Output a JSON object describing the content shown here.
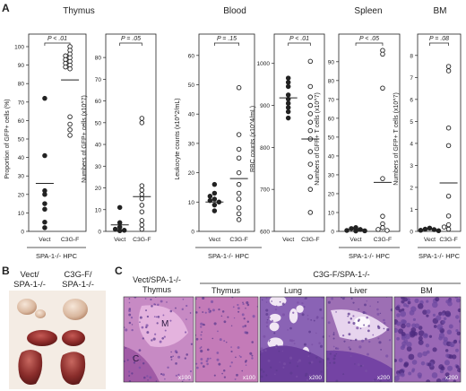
{
  "panels": {
    "a": "A",
    "b": "B",
    "c": "C"
  },
  "section_titles": {
    "thymus": "Thymus",
    "blood": "Blood",
    "spleen": "Spleen",
    "bm": "BM"
  },
  "group_labels": {
    "x_left": "Vect",
    "x_right": "C3G-F",
    "bracket": "SPA-1-/- HPC"
  },
  "chart_data": [
    {
      "type": "scatter",
      "key": "thymus_prop",
      "ylabel": "Proportion of GFP+ cells (%)",
      "ylim": [
        0,
        100
      ],
      "yticks": [
        "0",
        "10",
        "20",
        "30",
        "40",
        "50",
        "60",
        "70",
        "80",
        "90",
        "100"
      ],
      "yvals": [
        0,
        10,
        20,
        30,
        40,
        50,
        60,
        70,
        80,
        90,
        100
      ],
      "pvalue": "P < .01",
      "vect": {
        "values": [
          72,
          41,
          22,
          20,
          15,
          12,
          5,
          2
        ],
        "mean": 26
      },
      "c3gf": {
        "values": [
          100,
          98,
          96,
          95,
          94,
          93,
          92,
          91,
          90,
          89,
          88,
          62,
          58,
          55,
          52
        ],
        "mean": 82
      }
    },
    {
      "type": "scatter",
      "key": "thymus_num",
      "ylabel": "Numbers of GFP+ cells (x10^7)",
      "ylim": [
        0,
        85
      ],
      "yticks": [
        "0",
        "10",
        "20",
        "30",
        "40",
        "50",
        "60",
        "70",
        "80"
      ],
      "yvals": [
        0,
        10,
        20,
        30,
        40,
        50,
        60,
        70,
        80
      ],
      "pvalue": "P = .05",
      "vect": {
        "values": [
          11,
          4,
          2,
          1,
          0.5,
          0.3
        ],
        "mean": 3
      },
      "c3gf": {
        "values": [
          52,
          50,
          21,
          19,
          17,
          15,
          12,
          9,
          5,
          3,
          1
        ],
        "mean": 16
      }
    },
    {
      "type": "scatter",
      "key": "blood_leuk",
      "ylabel": "Leukocyte counts (x10^2/mL)",
      "ylim": [
        0,
        63
      ],
      "yticks": [
        "0",
        "10",
        "20",
        "30",
        "40",
        "50",
        "60"
      ],
      "yvals": [
        0,
        10,
        20,
        30,
        40,
        50,
        60
      ],
      "pvalue": "P = .15",
      "vect": {
        "values": [
          16,
          13,
          12,
          11,
          10.5,
          10,
          9,
          7
        ],
        "mean": 10
      },
      "c3gf": {
        "values": [
          49,
          33,
          28,
          25,
          20,
          16,
          13,
          11,
          8,
          6,
          4
        ],
        "mean": 18
      }
    },
    {
      "type": "scatter",
      "key": "blood_rbc",
      "ylabel": "RBC counts (x10^4/mL)",
      "ylim": [
        600,
        1040
      ],
      "yticks": [
        "600",
        "700",
        "800",
        "900",
        "1000"
      ],
      "yvals": [
        600,
        700,
        800,
        900,
        1000
      ],
      "pvalue": "P < .01",
      "vect": {
        "values": [
          965,
          955,
          945,
          925,
          915,
          905,
          895,
          885,
          870
        ],
        "mean": 918
      },
      "c3gf": {
        "values": [
          1005,
          945,
          920,
          900,
          880,
          860,
          840,
          820,
          790,
          760,
          730,
          700,
          645
        ],
        "mean": 820
      }
    },
    {
      "type": "scatter",
      "key": "spleen_num",
      "ylabel": "Numbers of GFP+ T cells (x10^7)",
      "ylim": [
        0,
        98
      ],
      "yticks": [
        "0",
        "10",
        "20",
        "30",
        "40",
        "50",
        "60",
        "70",
        "80",
        "90"
      ],
      "yvals": [
        0,
        10,
        20,
        30,
        40,
        50,
        60,
        70,
        80,
        90
      ],
      "pvalue": "P < .05",
      "vect": {
        "values": [
          2,
          1.5,
          1,
          0.5,
          0.3,
          0.2
        ],
        "mean": 1
      },
      "c3gf": {
        "values": [
          96,
          94,
          76,
          28,
          8,
          4,
          2,
          1,
          0.5
        ],
        "mean": 26
      }
    },
    {
      "type": "scatter",
      "key": "bm_num",
      "ylabel": "Numbers of GFP+ T cells (x10^7)",
      "ylim": [
        0,
        8.4
      ],
      "yticks": [
        "0",
        "1",
        "2",
        "3",
        "4",
        "5",
        "6",
        "7",
        "8"
      ],
      "yvals": [
        0,
        1,
        2,
        3,
        4,
        5,
        6,
        7,
        8
      ],
      "pvalue": "P = .08",
      "vect": {
        "values": [
          0.15,
          0.1,
          0.08,
          0.05,
          0.03
        ],
        "mean": 0.08
      },
      "c3gf": {
        "values": [
          7.5,
          7.3,
          4.7,
          3.9,
          1.6,
          0.7,
          0.3,
          0.2,
          0.1
        ],
        "mean": 2.2
      }
    }
  ],
  "panel_b": {
    "label1": "Vect/",
    "label1b": "SPA-1-/-",
    "label2": "C3G-F/",
    "label2b": "SPA-1-/-"
  },
  "panel_c": {
    "left_title1": "Vect/SPA-1-/-",
    "left_title2": "Thymus",
    "group_title": "C3G-F/SPA-1-/-",
    "tiles": [
      {
        "title": "",
        "mag": "x100",
        "letters": [
          "M",
          "C"
        ]
      },
      {
        "title": "Thymus",
        "mag": "x100",
        "letters": []
      },
      {
        "title": "Lung",
        "mag": "x200",
        "letters": []
      },
      {
        "title": "Liver",
        "mag": "x200",
        "letters": []
      },
      {
        "title": "BM",
        "mag": "x200",
        "letters": []
      }
    ]
  },
  "colors": {
    "stain_pink": "#e6a9d6",
    "stain_purple": "#7c4aa2",
    "dark": "#222222"
  }
}
